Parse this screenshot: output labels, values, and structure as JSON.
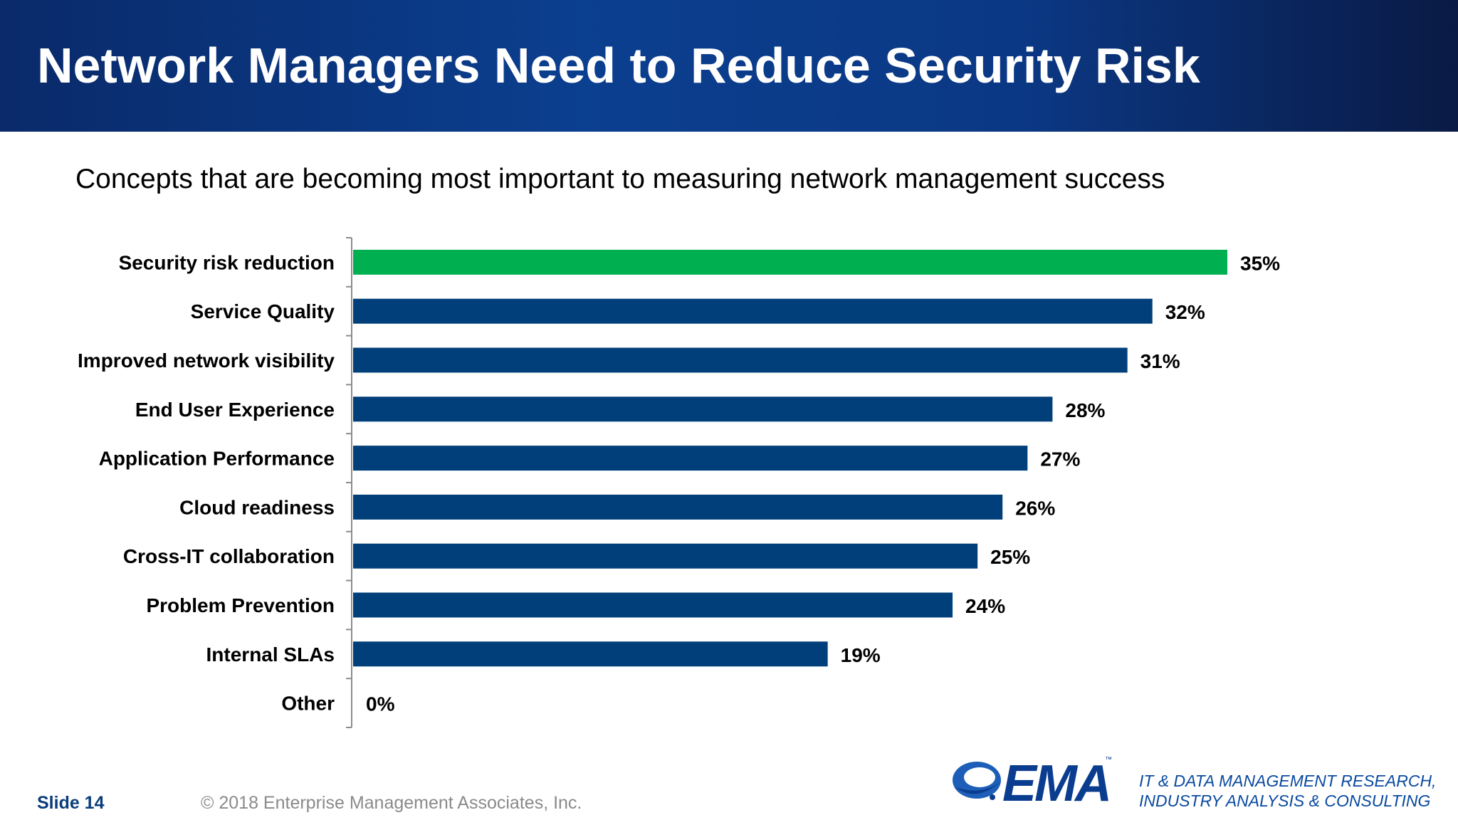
{
  "slide": {
    "title": "Network Managers Need to Reduce Security Risk",
    "subtitle": "Concepts that are becoming most important to measuring network management success",
    "footer": {
      "slide_number": "Slide 14",
      "copyright": "© 2018 Enterprise Management Associates, Inc.",
      "logo_text": "EMA",
      "logo_tm": "™",
      "tagline_line1": "IT & DATA MANAGEMENT RESEARCH,",
      "tagline_line2": "INDUSTRY ANALYSIS & CONSULTING"
    }
  },
  "colors": {
    "header_gradient_start": "#0a2a6a",
    "header_gradient_end": "#0a1a45",
    "highlight_bar": "#00b050",
    "default_bar": "#003f7a",
    "brand_blue": "#0a3d8f"
  },
  "chart_data": {
    "type": "bar",
    "orientation": "horizontal",
    "categories": [
      "Security risk reduction",
      "Service Quality",
      "Improved network visibility",
      "End User Experience",
      "Application Performance",
      "Cloud readiness",
      "Cross-IT collaboration",
      "Problem Prevention",
      "Internal SLAs",
      "Other"
    ],
    "values": [
      35,
      32,
      31,
      28,
      27,
      26,
      25,
      24,
      19,
      0
    ],
    "value_labels": [
      "35%",
      "32%",
      "31%",
      "28%",
      "27%",
      "26%",
      "25%",
      "24%",
      "19%",
      "0%"
    ],
    "highlight_index": 0,
    "unit": "%",
    "xlim": [
      0,
      35
    ],
    "grid": false,
    "legend": "none"
  }
}
